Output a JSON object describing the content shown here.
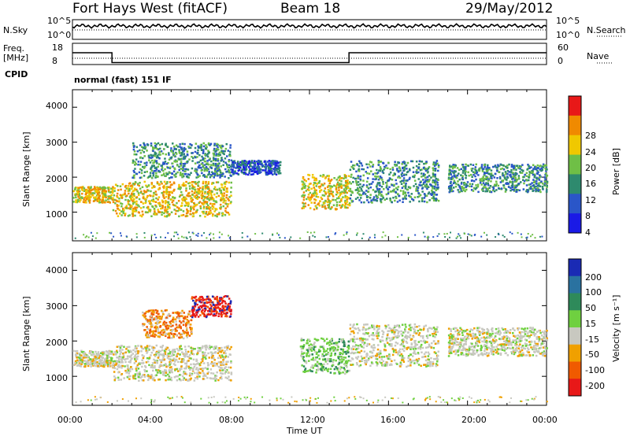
{
  "header": {
    "station": "Fort Hays West (fitACF)",
    "beam": "Beam 18",
    "date": "29/May/2012"
  },
  "status_panel": {
    "nsky_label": "N.Sky",
    "nsky_ticks": [
      "10^5",
      "10^0"
    ],
    "nsearch_label": "N.Search",
    "nsearch_ticks": [
      "10^5",
      "10^0"
    ],
    "freq_label": "Freq.",
    "freq_unit": "[MHz]",
    "freq_ticks": [
      "18",
      "8"
    ],
    "nave_label": "Nave",
    "nave_ticks": [
      "60",
      "0"
    ],
    "cpid_label": "CPID",
    "cpid_value": "normal (fast) 151 IF",
    "freq_steps": [
      [
        0,
        14
      ],
      [
        2,
        9
      ],
      [
        14,
        14
      ],
      [
        24,
        14
      ]
    ]
  },
  "chart_data": [
    {
      "type": "heatmap",
      "parameter": "Power",
      "ylabel": "Slant Range [km]",
      "y_ticks": [
        "1000",
        "2000",
        "3000",
        "4000"
      ],
      "ylim": [
        180,
        4500
      ],
      "xlim": [
        0,
        24
      ],
      "colorbar": {
        "label": "Power [dB]",
        "ticks": [
          "4",
          "8",
          "12",
          "16",
          "20",
          "24",
          "28"
        ],
        "colors": [
          "#1a1ae6",
          "#2a56c8",
          "#2e8a6e",
          "#6fbf46",
          "#f0c800",
          "#f08a00",
          "#e81818"
        ]
      },
      "echo_bands": [
        {
          "t0": 0,
          "t1": 2,
          "r_low": 1300,
          "r_high": 1750,
          "intensity": "high"
        },
        {
          "t0": 2,
          "t1": 8,
          "r_low": 900,
          "r_high": 1900,
          "intensity": "high"
        },
        {
          "t0": 3,
          "t1": 8,
          "r_low": 2000,
          "r_high": 3000,
          "intensity": "medium"
        },
        {
          "t0": 8,
          "t1": 10.5,
          "r_low": 2100,
          "r_high": 2500,
          "intensity": "low"
        },
        {
          "t0": 11.5,
          "t1": 14,
          "r_low": 1100,
          "r_high": 2100,
          "intensity": "high"
        },
        {
          "t0": 14,
          "t1": 18.5,
          "r_low": 1300,
          "r_high": 2500,
          "intensity": "medium"
        },
        {
          "t0": 19,
          "t1": 24,
          "r_low": 1600,
          "r_high": 2400,
          "intensity": "medium"
        }
      ]
    },
    {
      "type": "heatmap",
      "parameter": "Velocity",
      "ylabel": "Slant Range [km]",
      "y_ticks": [
        "1000",
        "2000",
        "3000",
        "4000"
      ],
      "ylim": [
        180,
        4500
      ],
      "xlim": [
        0,
        24
      ],
      "colorbar": {
        "label": "Velocity [m s⁻¹]",
        "ticks": [
          "200",
          "100",
          "50",
          "15",
          "-15",
          "-50",
          "-100",
          "-200"
        ],
        "colors": [
          "#1a2ab4",
          "#2a72a0",
          "#2e8a5a",
          "#6fd040",
          "#c8c8c0",
          "#f0a000",
          "#f05a00",
          "#e81818"
        ]
      },
      "echo_bands": [
        {
          "t0": 0,
          "t1": 2,
          "r_low": 1300,
          "r_high": 1750,
          "velocity": "near zero"
        },
        {
          "t0": 2,
          "t1": 8,
          "r_low": 900,
          "r_high": 1900,
          "velocity": "near zero"
        },
        {
          "t0": 3.5,
          "t1": 6,
          "r_low": 2100,
          "r_high": 2900,
          "velocity": "negative"
        },
        {
          "t0": 6,
          "t1": 8,
          "r_low": 2700,
          "r_high": 3300,
          "velocity": "strong negative"
        },
        {
          "t0": 11.5,
          "t1": 14,
          "r_low": 1100,
          "r_high": 2100,
          "velocity": "positive"
        },
        {
          "t0": 14,
          "t1": 18.5,
          "r_low": 1300,
          "r_high": 2500,
          "velocity": "near zero"
        },
        {
          "t0": 19,
          "t1": 24,
          "r_low": 1600,
          "r_high": 2400,
          "velocity": "near zero"
        }
      ]
    }
  ],
  "x_axis": {
    "ticks": [
      "00:00",
      "04:00",
      "08:00",
      "12:00",
      "16:00",
      "20:00",
      "00:00"
    ],
    "label": "Time UT"
  }
}
